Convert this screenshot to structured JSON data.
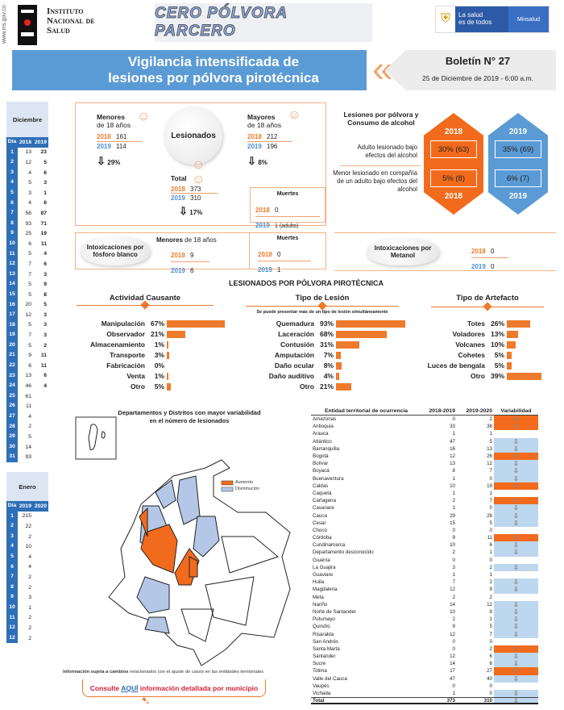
{
  "header": {
    "url": "www.ins.gov.co",
    "institute": [
      "Instituto",
      "Nacional de",
      "Salud"
    ],
    "campaign": "CERO PÓLVORA PARCERO",
    "ministry_slogan": [
      "La salud",
      "es de todos"
    ],
    "ministry": "Minsalud"
  },
  "title": {
    "line1": "Vigilancia intensificada de",
    "line2": "lesiones por pólvora pirotécnica",
    "bulletin": "Boletín N° 27",
    "date": "25 de Diciembre de 2019 - 6:00 a.m."
  },
  "colors": {
    "y2018": "#ee7a2c",
    "y2019": "#4a8fd6",
    "increase": "#f26b1d",
    "decrease": "#bdd7ee"
  },
  "december": {
    "title": "Diciembre",
    "cols": [
      "Día",
      "2018",
      "2019"
    ],
    "rows": [
      [
        1,
        13,
        23
      ],
      [
        2,
        12,
        5
      ],
      [
        3,
        4,
        6
      ],
      [
        4,
        5,
        3
      ],
      [
        5,
        3,
        1
      ],
      [
        6,
        4,
        6
      ],
      [
        7,
        56,
        87
      ],
      [
        8,
        93,
        71
      ],
      [
        9,
        25,
        19
      ],
      [
        10,
        6,
        11
      ],
      [
        11,
        5,
        4
      ],
      [
        12,
        7,
        6
      ],
      [
        13,
        7,
        3
      ],
      [
        14,
        5,
        9
      ],
      [
        15,
        5,
        8
      ],
      [
        16,
        20,
        5
      ],
      [
        17,
        12,
        3
      ],
      [
        18,
        5,
        3
      ],
      [
        19,
        7,
        3
      ],
      [
        20,
        5,
        2
      ],
      [
        21,
        9,
        11
      ],
      [
        22,
        6,
        11
      ],
      [
        23,
        13,
        6
      ],
      [
        24,
        46,
        4
      ],
      [
        25,
        61,
        ""
      ],
      [
        26,
        11,
        ""
      ],
      [
        27,
        4,
        ""
      ],
      [
        28,
        2,
        ""
      ],
      [
        29,
        5,
        ""
      ],
      [
        30,
        14,
        ""
      ],
      [
        31,
        93,
        ""
      ]
    ]
  },
  "january": {
    "title": "Enero",
    "cols": [
      "Día",
      "2019",
      "2020"
    ],
    "rows": [
      [
        1,
        215,
        ""
      ],
      [
        2,
        22,
        ""
      ],
      [
        3,
        2,
        ""
      ],
      [
        4,
        10,
        ""
      ],
      [
        5,
        4,
        ""
      ],
      [
        6,
        4,
        ""
      ],
      [
        7,
        2,
        ""
      ],
      [
        8,
        2,
        ""
      ],
      [
        9,
        3,
        ""
      ],
      [
        10,
        1,
        ""
      ],
      [
        11,
        2,
        ""
      ],
      [
        12,
        2,
        ""
      ],
      [
        12,
        2,
        ""
      ]
    ]
  },
  "injured": {
    "title": "Lesionados",
    "minors": {
      "label1": "Menores",
      "label2": "de 18 años",
      "y2018": "2018",
      "v2018": "161",
      "y2019": "2019",
      "v2019": "114",
      "change": "29%"
    },
    "adults": {
      "label1": "Mayores",
      "label2": "de 18 años",
      "y2018": "2018",
      "v2018": "212",
      "y2019": "2019",
      "v2019": "196",
      "change": "8%"
    },
    "total": {
      "label": "Total",
      "y2018": "2018",
      "v2018": "373",
      "y2019": "2019",
      "v2019": "310",
      "change": "17%"
    },
    "deaths": {
      "title": "Muertes",
      "y2018": "2018",
      "v2018": "0",
      "y2019": "2019",
      "v2019": "1 (adulto)"
    }
  },
  "alcohol": {
    "title1": "Lesiones por pólvora y",
    "title2": "Consumo de alcohol",
    "y2018": "2018",
    "y2019": "2019",
    "adult_label": "Adulto lesionado bajo efectos del alcohol",
    "adult_2018": "30%  (63)",
    "adult_2019": "35%  (69)",
    "minor_label": "Menor lesionado en compañía de un adulto bajo efectos del alcohol",
    "minor_2018": "5%  (8)",
    "minor_2019": "6%  (7)"
  },
  "phosphorus": {
    "title": "Intoxicaciones por fósforo blanco",
    "group1": "Menores",
    "group2": "de 18 años",
    "y2018": "2018",
    "v2018": "9",
    "y2019": "2019",
    "v2019": "6",
    "deaths": {
      "title": "Muertes",
      "y2018": "2018",
      "v2018": "0",
      "y2019": "2019",
      "v2019": "1"
    }
  },
  "methanol": {
    "title": "Intoxicaciones por Metanol",
    "y2018": "2018",
    "v2018": "0",
    "y2019": "2019",
    "v2019": "0"
  },
  "section_title": "LESIONADOS POR PÓLVORA PIROTÉCNICA",
  "chart_data": [
    {
      "type": "bar",
      "title": "Actividad Causante",
      "categories": [
        "Manipulación",
        "Observador",
        "Almacenamiento",
        "Transporte",
        "Fabricación",
        "Venta",
        "Otro"
      ],
      "values": [
        67,
        21,
        1,
        3,
        0,
        1,
        5
      ],
      "unit": "%"
    },
    {
      "type": "bar",
      "title": "Tipo de Lesión",
      "subtitle": "Se puede presentar más de un tipo de lesión simultáneamente",
      "categories": [
        "Quemadura",
        "Laceración",
        "Contusión",
        "Amputación",
        "Daño ocular",
        "Daño auditivo",
        "Otro"
      ],
      "values": [
        93,
        68,
        31,
        7,
        8,
        4,
        21
      ],
      "unit": "%"
    },
    {
      "type": "bar",
      "title": "Tipo de Artefacto",
      "categories": [
        "Totes",
        "Voladores",
        "Volcanes",
        "Cohetes",
        "Luces de bengala",
        "Otro"
      ],
      "values": [
        26,
        13,
        10,
        5,
        5,
        39
      ],
      "unit": "%"
    }
  ],
  "map": {
    "title1": "Departamentos y Distritos con mayor variabilidad",
    "title2": "en el número de lesionados",
    "legend_up": "Aumento",
    "legend_down": "Disminución"
  },
  "entities": {
    "cols": [
      "Entidad territorial de ocurrencia",
      "2018-2019",
      "2019-2020",
      "Variabilidad"
    ],
    "rows": [
      [
        "Amazonas",
        0,
        2,
        "up"
      ],
      [
        "Antioquia",
        33,
        38,
        "up"
      ],
      [
        "Arauca",
        1,
        1,
        ""
      ],
      [
        "Atlántico",
        47,
        5,
        "down"
      ],
      [
        "Barranquilla",
        16,
        13,
        "down"
      ],
      [
        "Bogotá",
        12,
        26,
        "up"
      ],
      [
        "Bolívar",
        13,
        12,
        "down"
      ],
      [
        "Boyacá",
        8,
        7,
        "down"
      ],
      [
        "Buenaventura",
        1,
        0,
        "down"
      ],
      [
        "Caldas",
        10,
        19,
        "up"
      ],
      [
        "Caquetá",
        1,
        1,
        ""
      ],
      [
        "Cartagena",
        2,
        7,
        "up"
      ],
      [
        "Casanare",
        1,
        0,
        "down"
      ],
      [
        "Cauca",
        29,
        26,
        "down"
      ],
      [
        "Cesar",
        15,
        5,
        "down"
      ],
      [
        "Chocó",
        0,
        0,
        ""
      ],
      [
        "Córdoba",
        9,
        11,
        "up"
      ],
      [
        "Cundinamarca",
        10,
        6,
        "down"
      ],
      [
        "Departamento desconocido",
        2,
        1,
        "down"
      ],
      [
        "Guainía",
        0,
        0,
        ""
      ],
      [
        "La Guajira",
        3,
        2,
        "down"
      ],
      [
        "Guaviare",
        1,
        1,
        ""
      ],
      [
        "Huila",
        7,
        2,
        "down"
      ],
      [
        "Magdalena",
        12,
        9,
        "down"
      ],
      [
        "Meta",
        2,
        2,
        ""
      ],
      [
        "Nariño",
        14,
        12,
        "down"
      ],
      [
        "Norte de Santander",
        10,
        8,
        "down"
      ],
      [
        "Putumayo",
        2,
        1,
        "down"
      ],
      [
        "Quindío",
        9,
        5,
        "down"
      ],
      [
        "Risaralda",
        12,
        7,
        "down"
      ],
      [
        "San Andrés",
        0,
        0,
        ""
      ],
      [
        "Santa Marta",
        0,
        2,
        "up"
      ],
      [
        "Santander",
        12,
        6,
        "down"
      ],
      [
        "Sucre",
        14,
        6,
        "down"
      ],
      [
        "Tolima",
        17,
        27,
        "up"
      ],
      [
        "Valle del Cauca",
        47,
        40,
        "down"
      ],
      [
        "Vaupés",
        0,
        0,
        ""
      ],
      [
        "Vichada",
        1,
        0,
        "down"
      ]
    ],
    "total": [
      "Total",
      373,
      310,
      "down"
    ]
  },
  "footer": {
    "note_bold": "Información sujeta a cambios",
    "note_rest": " relacionados con el ajuste de casos en las entidades territoriales",
    "cta_pre": "Consulte ",
    "cta_link": "AQUÍ",
    "cta_post": " información detallada por municipio"
  }
}
